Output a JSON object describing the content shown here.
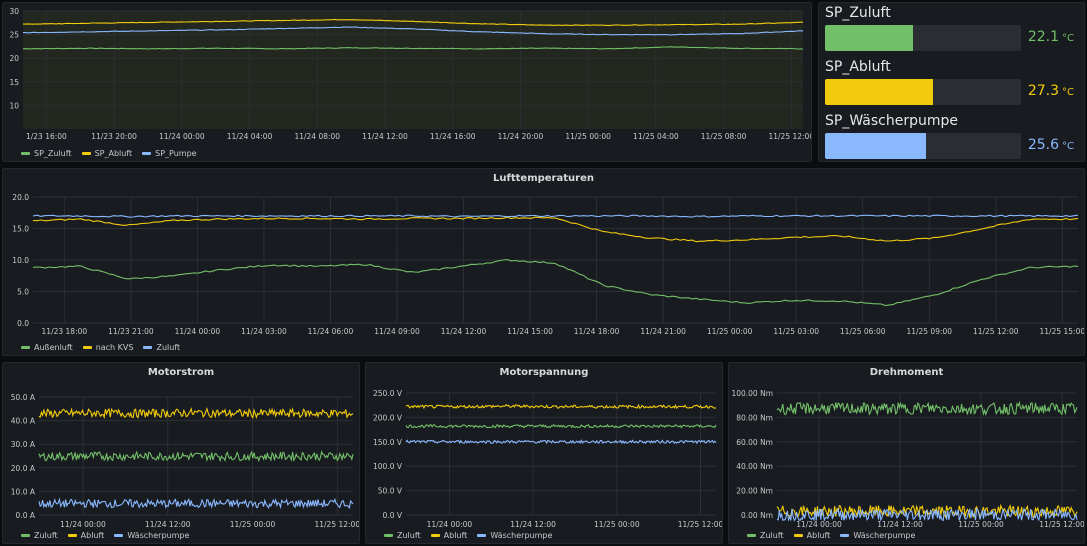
{
  "colors": {
    "green": "#73bf69",
    "yellow": "#f2cc0c",
    "blue": "#8ab8ff",
    "grid": "#2c2f34"
  },
  "panels": {
    "sp_trend": {
      "title": "",
      "series": [
        "SP_Zuluft",
        "SP_Abluft",
        "SP_Pumpe"
      ]
    },
    "gauges": [
      {
        "name": "SP_Zuluft",
        "value": "22.1",
        "unit": "°C",
        "fraction": 0.45,
        "color": "#73bf69"
      },
      {
        "name": "SP_Abluft",
        "value": "27.3",
        "unit": "°C",
        "fraction": 0.55,
        "color": "#f2cc0c"
      },
      {
        "name": "SP_Wäscherpumpe",
        "value": "25.6",
        "unit": "°C",
        "fraction": 0.52,
        "color": "#8ab8ff"
      }
    ],
    "luft": {
      "title": "Lufttemperaturen",
      "series": [
        "Außenluft",
        "nach KVS",
        "Zuluft"
      ]
    },
    "motorstrom": {
      "title": "Motorstrom",
      "series": [
        "Zuluft",
        "Abluft",
        "Wäscherpumpe"
      ]
    },
    "motorspannung": {
      "title": "Motorspannung",
      "series": [
        "Zuluft",
        "Abluft",
        "Wäscherpumpe"
      ]
    },
    "drehmoment": {
      "title": "Drehmoment",
      "series": [
        "Zuluft",
        "Abluft",
        "Wäscherpumpe"
      ]
    }
  },
  "chart_data": [
    {
      "id": "sp_trend",
      "type": "line",
      "title": "",
      "x_ticks": [
        "1/23 16:00",
        "11/23 20:00",
        "11/24 00:00",
        "11/24 04:00",
        "11/24 08:00",
        "11/24 12:00",
        "11/24 16:00",
        "11/24 20:00",
        "11/25 00:00",
        "11/25 04:00",
        "11/25 08:00",
        "11/25 12:00"
      ],
      "y_ticks": [
        "10",
        "15",
        "20",
        "25",
        "30"
      ],
      "ylim": [
        5,
        30
      ],
      "series": [
        {
          "name": "SP_Zuluft",
          "color": "#73bf69",
          "values": [
            22.0,
            22.1,
            22.0,
            22.1,
            22.0,
            22.2,
            22.1,
            22.0,
            22.1,
            22.0,
            22.4,
            22.1,
            22.0
          ]
        },
        {
          "name": "SP_Abluft",
          "color": "#f2cc0c",
          "values": [
            27.2,
            27.4,
            27.6,
            27.8,
            28.0,
            28.2,
            27.8,
            27.3,
            27.0,
            27.0,
            27.1,
            27.2,
            27.6
          ]
        },
        {
          "name": "SP_Pumpe",
          "color": "#8ab8ff",
          "values": [
            25.4,
            25.6,
            25.8,
            26.0,
            26.3,
            26.6,
            26.2,
            25.6,
            25.2,
            25.0,
            25.0,
            25.2,
            25.8
          ]
        }
      ]
    },
    {
      "id": "luft",
      "type": "line",
      "title": "Lufttemperaturen",
      "x_ticks": [
        "11/23 18:00",
        "11/23 21:00",
        "11/24 00:00",
        "11/24 03:00",
        "11/24 06:00",
        "11/24 09:00",
        "11/24 12:00",
        "11/24 15:00",
        "11/24 18:00",
        "11/24 21:00",
        "11/25 00:00",
        "11/25 03:00",
        "11/25 06:00",
        "11/25 09:00",
        "11/25 12:00",
        "11/25 15:00"
      ],
      "y_ticks": [
        "0.0",
        "5.0",
        "10.0",
        "15.0",
        "20.0"
      ],
      "ylim": [
        0,
        20
      ],
      "series": [
        {
          "name": "Außenluft",
          "color": "#73bf69",
          "values": [
            8.8,
            9.0,
            7.0,
            7.5,
            8.5,
            9.2,
            9.0,
            9.3,
            8.0,
            9.0,
            10.0,
            9.5,
            6.0,
            4.5,
            3.8,
            3.2,
            3.6,
            3.5,
            2.8,
            4.5,
            7.0,
            8.8,
            9.0
          ]
        },
        {
          "name": "nach KVS",
          "color": "#f2cc0c",
          "values": [
            16.2,
            16.5,
            15.5,
            16.3,
            16.5,
            16.6,
            16.6,
            16.5,
            16.6,
            16.6,
            16.7,
            16.7,
            14.5,
            13.5,
            13.0,
            13.2,
            13.6,
            13.8,
            13.0,
            13.5,
            15.0,
            16.5,
            16.5
          ]
        },
        {
          "name": "Zuluft",
          "color": "#8ab8ff",
          "values": [
            17.0,
            17.0,
            16.9,
            17.0,
            17.0,
            17.0,
            17.0,
            17.0,
            17.0,
            16.9,
            17.0,
            17.0,
            17.0,
            17.0,
            16.9,
            17.0,
            17.0,
            17.0,
            17.0,
            17.0,
            17.0,
            17.0,
            17.0
          ]
        }
      ]
    },
    {
      "id": "motorstrom",
      "type": "line",
      "title": "Motorstrom",
      "x_ticks": [
        "11/24 00:00",
        "11/24 12:00",
        "11/25 00:00",
        "11/25 12:00"
      ],
      "y_ticks": [
        "0.0 A",
        "10.0 A",
        "20.0 A",
        "30.0 A",
        "40.0 A",
        "50.0 A"
      ],
      "ylim": [
        0,
        50
      ],
      "series": [
        {
          "name": "Zuluft",
          "color": "#73bf69",
          "values": [
            24.8,
            25.0,
            24.9,
            25.0,
            24.8,
            25.0,
            24.9
          ]
        },
        {
          "name": "Abluft",
          "color": "#f2cc0c",
          "values": [
            43.0,
            43.2,
            43.0,
            43.3,
            43.0,
            43.1,
            43.0
          ]
        },
        {
          "name": "Wäscherpumpe",
          "color": "#8ab8ff",
          "values": [
            4.8,
            4.9,
            4.8,
            4.9,
            4.8,
            4.9,
            4.8
          ]
        }
      ]
    },
    {
      "id": "motorspannung",
      "type": "line",
      "title": "Motorspannung",
      "x_ticks": [
        "11/24 00:00",
        "11/24 12:00",
        "11/25 00:00",
        "11/25 12:00"
      ],
      "y_ticks": [
        "0.0 V",
        "50.0 V",
        "100.0 V",
        "150.0 V",
        "200.0 V",
        "250.0 V"
      ],
      "ylim": [
        0,
        250
      ],
      "series": [
        {
          "name": "Zuluft",
          "color": "#73bf69",
          "values": [
            182,
            182,
            182,
            182,
            182,
            182,
            182
          ]
        },
        {
          "name": "Abluft",
          "color": "#f2cc0c",
          "values": [
            222,
            222,
            223,
            222,
            222,
            222,
            222
          ]
        },
        {
          "name": "Wäscherpumpe",
          "color": "#8ab8ff",
          "values": [
            150,
            150,
            150,
            150,
            150,
            150,
            150
          ]
        }
      ]
    },
    {
      "id": "drehmoment",
      "type": "line",
      "title": "Drehmoment",
      "x_ticks": [
        "11/24 00:00",
        "11/24 12:00",
        "11/25 00:00",
        "11/25 12:00"
      ],
      "y_ticks": [
        "0.00 Nm",
        "20.00 Nm",
        "40.00 Nm",
        "60.00 Nm",
        "80.00 Nm",
        "100.00 Nm"
      ],
      "ylim": [
        0,
        100
      ],
      "series": [
        {
          "name": "Zuluft",
          "color": "#73bf69",
          "values": [
            87,
            87.5,
            87,
            87.6,
            87,
            87.4,
            87.2
          ]
        },
        {
          "name": "Abluft",
          "color": "#f2cc0c",
          "values": [
            3.0,
            3.0,
            3.0,
            3.0,
            3.0,
            3.0,
            3.0
          ]
        },
        {
          "name": "Wäscherpumpe",
          "color": "#8ab8ff",
          "values": [
            0.3,
            0.3,
            0.3,
            0.3,
            0.3,
            0.3,
            0.3
          ]
        }
      ]
    }
  ]
}
